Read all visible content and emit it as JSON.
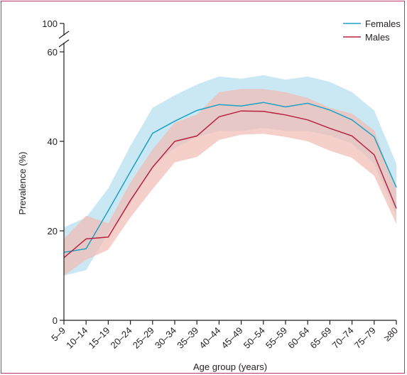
{
  "chart_data": {
    "type": "area",
    "xlabel": "Age group (years)",
    "ylabel": "Prevalence (%)",
    "ylim": [
      0,
      60
    ],
    "y_break_label": "100",
    "yticks": [
      "0",
      "20",
      "40",
      "60"
    ],
    "categories": [
      "5–9",
      "10–14",
      "15–19",
      "20–24",
      "25–29",
      "30–34",
      "35–39",
      "40–44",
      "45–49",
      "50–54",
      "55–59",
      "60–64",
      "65–69",
      "70–74",
      "75–79",
      "≥80"
    ],
    "series": [
      {
        "name": "Females",
        "color": "#1ba1c4",
        "band_color": "#b6dff0",
        "values": [
          15.2,
          16.0,
          24.5,
          33.2,
          41.8,
          44.5,
          46.9,
          48.2,
          47.9,
          48.7,
          47.7,
          48.5,
          47.0,
          44.8,
          41.0,
          29.7
        ],
        "lower": [
          10.0,
          11.2,
          19.5,
          26.0,
          34.5,
          38.5,
          41.0,
          42.3,
          42.3,
          43.0,
          42.3,
          42.3,
          41.3,
          39.5,
          35.0,
          23.3
        ],
        "upper": [
          20.8,
          23.0,
          29.5,
          39.0,
          47.5,
          50.3,
          52.7,
          54.5,
          54.0,
          54.8,
          53.8,
          54.5,
          53.3,
          51.0,
          46.9,
          35.0
        ]
      },
      {
        "name": "Males",
        "color": "#b8223f",
        "band_color": "#f1bcb6",
        "values": [
          14.0,
          18.2,
          18.6,
          26.8,
          34.2,
          40.0,
          41.2,
          45.5,
          46.8,
          46.7,
          45.9,
          44.8,
          42.9,
          41.2,
          37.0,
          25.0
        ],
        "lower": [
          10.0,
          13.5,
          15.8,
          23.0,
          29.3,
          35.3,
          36.5,
          40.3,
          41.5,
          41.7,
          41.0,
          40.0,
          37.9,
          36.3,
          32.3,
          21.5
        ],
        "upper": [
          18.2,
          23.4,
          21.7,
          30.8,
          38.2,
          44.2,
          46.0,
          51.0,
          51.7,
          51.7,
          51.0,
          49.7,
          47.5,
          46.2,
          42.5,
          29.0
        ]
      }
    ],
    "grid": false,
    "legend_position": "top-right"
  }
}
